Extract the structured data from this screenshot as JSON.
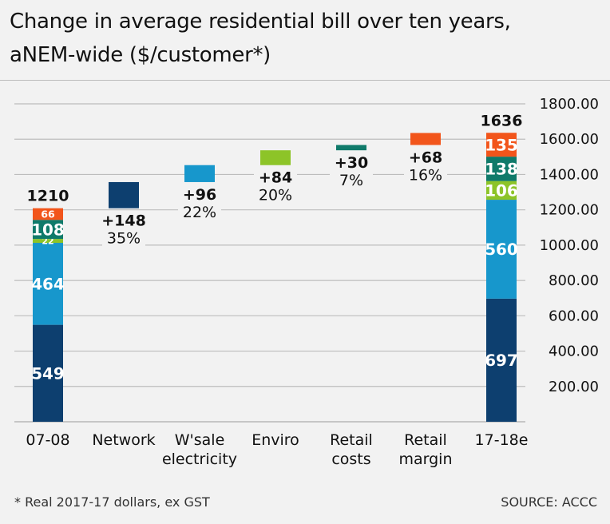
{
  "title_lines": [
    "Change in average residential bill over ten years,",
    "aNEM-wide ($/customer*)"
  ],
  "footnote": "* Real 2017-17 dollars, ex GST",
  "source": "SOURCE: ACCC",
  "chart_data": {
    "type": "bar",
    "subtype": "waterfall",
    "categories": [
      [
        "07-08"
      ],
      [
        "Network"
      ],
      [
        "W'sale",
        "electricity"
      ],
      [
        "Enviro"
      ],
      [
        "Retail",
        "costs"
      ],
      [
        "Retail",
        "margin"
      ],
      [
        "17-18e"
      ]
    ],
    "ylim": [
      0,
      1800
    ],
    "y_ticks": [
      200,
      400,
      600,
      800,
      1000,
      1200,
      1400,
      1600,
      1800
    ],
    "y_tick_labels": [
      "200.00",
      "400.00",
      "600.00",
      "800.00",
      "1000.00",
      "1200.00",
      "1400.00",
      "1600.00",
      "1800.00"
    ],
    "components": [
      {
        "name": "Network",
        "color": "#0d3f6f"
      },
      {
        "name": "W'sale electricity",
        "color": "#1797cc"
      },
      {
        "name": "Enviro",
        "color": "#8dc428"
      },
      {
        "name": "Retail costs",
        "color": "#0f7a6a"
      },
      {
        "name": "Retail margin",
        "color": "#f2551b"
      }
    ],
    "start": {
      "label": "1210",
      "values": [
        549,
        464,
        22,
        108,
        66
      ],
      "value_labels": [
        "549",
        "464",
        "22",
        "108",
        "66"
      ]
    },
    "end": {
      "label": "1636",
      "values": [
        697,
        560,
        106,
        138,
        135
      ],
      "value_labels": [
        "697",
        "560",
        "106",
        "138",
        "135"
      ]
    },
    "changes": [
      {
        "value": 148,
        "label": "+148",
        "pct": "35%"
      },
      {
        "value": 96,
        "label": "+96",
        "pct": "22%"
      },
      {
        "value": 84,
        "label": "+84",
        "pct": "20%"
      },
      {
        "value": 30,
        "label": "+30",
        "pct": "7%"
      },
      {
        "value": 68,
        "label": "+68",
        "pct": "16%"
      }
    ],
    "grid": true
  }
}
